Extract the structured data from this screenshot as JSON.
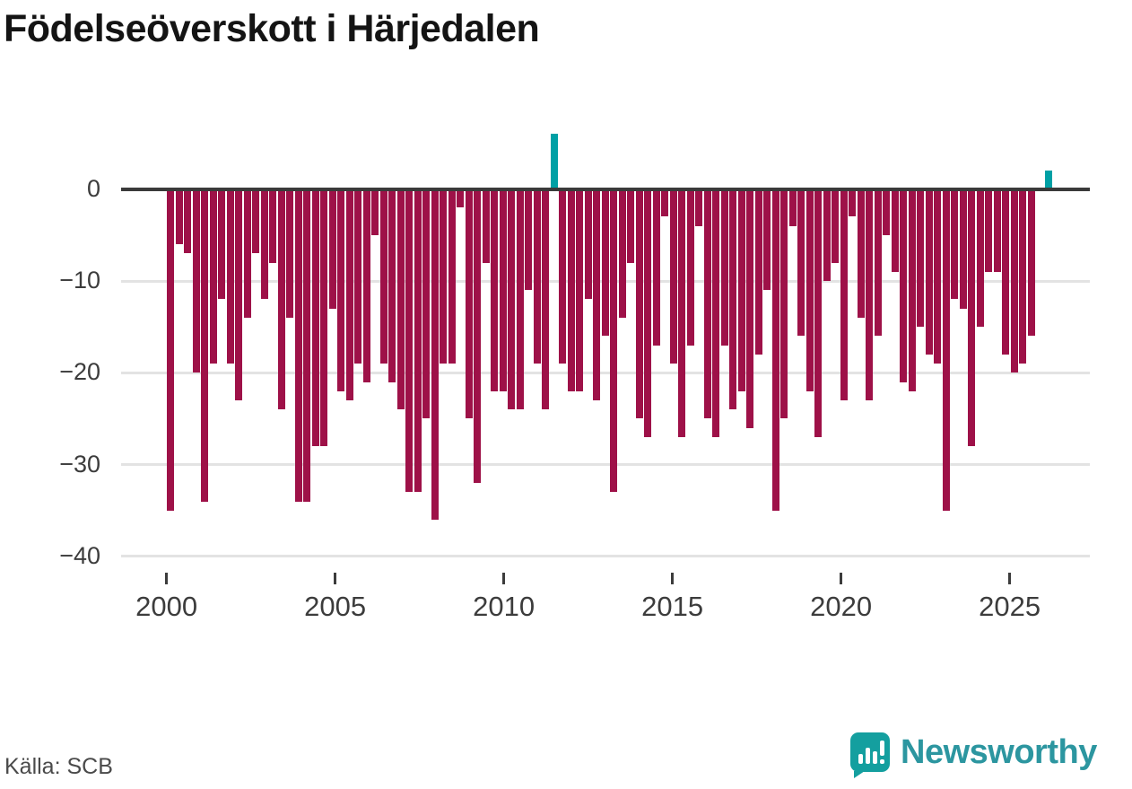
{
  "title": "Födelseöverskott i Härjedalen",
  "source": {
    "label": "Källa: SCB"
  },
  "brand": {
    "name": "Newsworthy",
    "icon": "newsworthy-speech-bubble-bar-chart-icon",
    "color": "#2c96a0"
  },
  "chart_data": {
    "type": "bar",
    "title": "Födelseöverskott i Härjedalen",
    "x_unit": "quarter",
    "grid": true,
    "zero_line": true,
    "legend": "none",
    "ylim": [
      -40,
      7
    ],
    "yticks": [
      0,
      -10,
      -20,
      -30,
      -40
    ],
    "ytick_labels": [
      "0",
      "−10",
      "−20",
      "−30",
      "−40"
    ],
    "xticks": [
      2000,
      2005,
      2010,
      2015,
      2020,
      2025
    ],
    "xtick_labels": [
      "2000",
      "2005",
      "2010",
      "2015",
      "2020",
      "2025"
    ],
    "negative_color": "#9e1148",
    "positive_color": "#00a0a5",
    "series": [
      {
        "name": "Födelseöverskott",
        "values_by_year": {
          "2000": [
            -35,
            -6,
            -7,
            -20
          ],
          "2001": [
            -34,
            -19,
            -12,
            -19
          ],
          "2002": [
            -23,
            -14,
            -7,
            -12
          ],
          "2003": [
            -8,
            -24,
            -14,
            -34
          ],
          "2004": [
            -34,
            -28,
            -28,
            -13
          ],
          "2005": [
            -22,
            -23,
            -19,
            -21
          ],
          "2006": [
            -5,
            -19,
            -21,
            -24
          ],
          "2007": [
            -33,
            -33,
            -25,
            -36
          ],
          "2008": [
            -19,
            -19,
            -2,
            -25
          ],
          "2009": [
            -32,
            -8,
            -22,
            -22
          ],
          "2010": [
            -24,
            -24,
            -11,
            -19
          ],
          "2011": [
            -24,
            6,
            -19,
            -22
          ],
          "2012": [
            -22,
            -12,
            -23,
            -16
          ],
          "2013": [
            -33,
            -14,
            -8,
            -25
          ],
          "2014": [
            -27,
            -17,
            -3,
            -19
          ],
          "2015": [
            -27,
            -17,
            -4,
            -25
          ],
          "2016": [
            -27,
            -17,
            -24,
            -22
          ],
          "2017": [
            -26,
            -18,
            -11,
            -35
          ],
          "2018": [
            -25,
            -4,
            -16,
            -22
          ],
          "2019": [
            -27,
            -10,
            -8,
            -23
          ],
          "2020": [
            -3,
            -14,
            -23,
            -16
          ],
          "2021": [
            -5,
            -9,
            -21,
            -22
          ],
          "2022": [
            -15,
            -18,
            -19,
            -35
          ],
          "2023": [
            -12,
            -13,
            -28,
            -15
          ],
          "2024": [
            -9,
            -9,
            -18,
            -20
          ],
          "2025": [
            -19,
            -16,
            0,
            2
          ]
        }
      }
    ]
  }
}
